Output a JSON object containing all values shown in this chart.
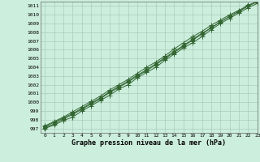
{
  "title": "Graphe pression niveau de la mer (hPa)",
  "bg_color": "#cceedd",
  "grid_color": "#aaccbb",
  "line_color": "#336633",
  "marker_color": "#336633",
  "xlim": [
    -0.5,
    23
  ],
  "ylim": [
    996.5,
    1011.5
  ],
  "xticks": [
    0,
    1,
    2,
    3,
    4,
    5,
    6,
    7,
    8,
    9,
    10,
    11,
    12,
    13,
    14,
    15,
    16,
    17,
    18,
    19,
    20,
    21,
    22,
    23
  ],
  "yticks": [
    997,
    998,
    999,
    1000,
    1001,
    1002,
    1003,
    1004,
    1005,
    1006,
    1007,
    1008,
    1009,
    1010,
    1011
  ],
  "series": [
    [
      997.0,
      997.4,
      997.9,
      998.3,
      999.0,
      999.6,
      1000.2,
      1000.8,
      1001.5,
      1002.0,
      1002.8,
      1003.4,
      1004.0,
      1004.8,
      1005.5,
      1006.2,
      1006.8,
      1007.5,
      1008.3,
      1009.0,
      1009.6,
      1010.2,
      1010.8,
      1011.3
    ],
    [
      997.2,
      997.7,
      998.2,
      998.7,
      999.3,
      999.9,
      1000.5,
      1001.2,
      1001.8,
      1002.4,
      1003.1,
      1003.7,
      1004.4,
      1005.1,
      1005.8,
      1006.5,
      1007.2,
      1007.9,
      1008.5,
      1009.2,
      1009.8,
      1010.4,
      1011.0,
      1011.5
    ],
    [
      997.3,
      997.8,
      998.3,
      998.9,
      999.5,
      1000.1,
      1000.7,
      1001.4,
      1002.0,
      1002.6,
      1003.3,
      1004.0,
      1004.6,
      1005.3,
      1006.1,
      1006.8,
      1007.5,
      1008.1,
      1008.8,
      1009.4,
      1010.0,
      1010.5,
      1011.1,
      1011.5
    ],
    [
      997.1,
      997.5,
      998.1,
      998.6,
      999.2,
      999.8,
      1000.4,
      1001.1,
      1001.7,
      1002.3,
      1003.0,
      1003.6,
      1004.3,
      1005.0,
      1005.7,
      1006.4,
      1007.1,
      1007.8,
      1008.5,
      1009.2,
      1009.8,
      1010.4,
      1011.0,
      1011.5
    ]
  ],
  "figwidth": 3.2,
  "figheight": 2.0,
  "dpi": 100
}
